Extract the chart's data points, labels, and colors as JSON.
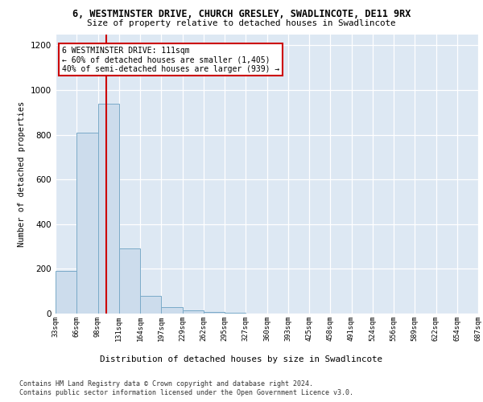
{
  "title": "6, WESTMINSTER DRIVE, CHURCH GRESLEY, SWADLINCOTE, DE11 9RX",
  "subtitle": "Size of property relative to detached houses in Swadlincote",
  "xlabel": "Distribution of detached houses by size in Swadlincote",
  "ylabel": "Number of detached properties",
  "bins": [
    "33sqm",
    "66sqm",
    "98sqm",
    "131sqm",
    "164sqm",
    "197sqm",
    "229sqm",
    "262sqm",
    "295sqm",
    "327sqm",
    "360sqm",
    "393sqm",
    "425sqm",
    "458sqm",
    "491sqm",
    "524sqm",
    "556sqm",
    "589sqm",
    "622sqm",
    "654sqm",
    "687sqm"
  ],
  "bar_values": [
    190,
    810,
    940,
    290,
    80,
    30,
    15,
    8,
    3,
    0,
    0,
    0,
    0,
    0,
    0,
    0,
    0,
    0,
    0,
    0
  ],
  "bar_color": "#ccdcec",
  "bar_edge_color": "#7aaac8",
  "property_line_color": "#cc0000",
  "annotation_text": "6 WESTMINSTER DRIVE: 111sqm\n← 60% of detached houses are smaller (1,405)\n40% of semi-detached houses are larger (939) →",
  "annotation_box_facecolor": "#ffffff",
  "annotation_box_edgecolor": "#cc0000",
  "ylim": [
    0,
    1250
  ],
  "yticks": [
    0,
    200,
    400,
    600,
    800,
    1000,
    1200
  ],
  "background_color": "#dde8f3",
  "footer_line1": "Contains HM Land Registry data © Crown copyright and database right 2024.",
  "footer_line2": "Contains public sector information licensed under the Open Government Licence v3.0."
}
